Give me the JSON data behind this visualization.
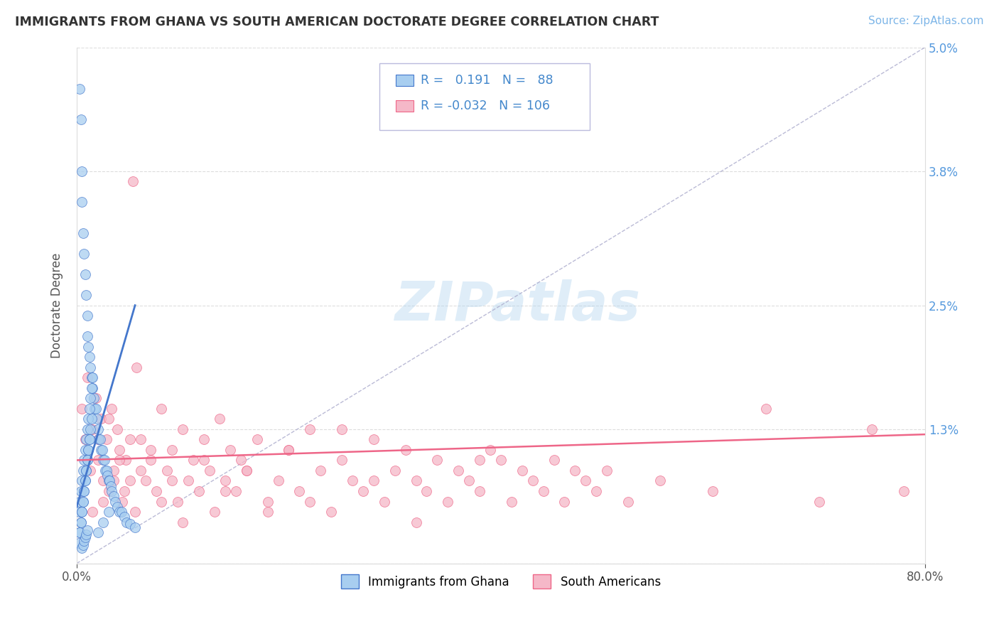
{
  "title": "IMMIGRANTS FROM GHANA VS SOUTH AMERICAN DOCTORATE DEGREE CORRELATION CHART",
  "source": "Source: ZipAtlas.com",
  "ylabel": "Doctorate Degree",
  "watermark": "ZIPatlas",
  "xlim": [
    0,
    80
  ],
  "ylim": [
    0,
    5.0
  ],
  "ytick_positions": [
    0,
    1.3,
    2.5,
    3.8,
    5.0
  ],
  "ytick_labels": [
    "",
    "1.3%",
    "2.5%",
    "3.8%",
    "5.0%"
  ],
  "ghana_R": 0.191,
  "ghana_N": 88,
  "south_R": -0.032,
  "south_N": 106,
  "ghana_color": "#A8CEF0",
  "south_color": "#F5B8C8",
  "trend_ghana_color": "#4477CC",
  "trend_south_color": "#EE6688",
  "background_color": "#FFFFFF",
  "grid_color": "#DDDDDD",
  "diag_color": "#AAAACC",
  "ghana_scatter_x": [
    0.3,
    0.4,
    0.5,
    0.5,
    0.6,
    0.7,
    0.8,
    0.9,
    1.0,
    1.0,
    1.1,
    1.2,
    1.3,
    1.4,
    1.5,
    1.6,
    1.7,
    1.8,
    1.9,
    2.0,
    2.1,
    2.2,
    2.3,
    2.4,
    2.5,
    2.6,
    2.7,
    2.8,
    2.9,
    3.0,
    3.1,
    3.2,
    3.3,
    3.5,
    3.6,
    3.8,
    4.0,
    4.2,
    4.5,
    4.7,
    5.0,
    5.5,
    0.2,
    0.3,
    0.4,
    0.5,
    0.6,
    0.7,
    0.8,
    0.9,
    1.0,
    1.1,
    1.2,
    1.3,
    1.4,
    1.5,
    0.3,
    0.4,
    0.5,
    0.6,
    0.7,
    0.8,
    0.9,
    1.0,
    1.1,
    1.2,
    1.3,
    1.4,
    0.2,
    0.3,
    0.4,
    0.5,
    0.6,
    0.7,
    0.8,
    0.9,
    1.0,
    1.1,
    1.2,
    2.0,
    2.5,
    3.0,
    0.5,
    0.6,
    0.7,
    0.8,
    0.9,
    1.0
  ],
  "ghana_scatter_y": [
    4.6,
    4.3,
    3.8,
    3.5,
    3.2,
    3.0,
    2.8,
    2.6,
    2.4,
    2.2,
    2.1,
    2.0,
    1.9,
    1.8,
    1.7,
    1.6,
    1.5,
    1.5,
    1.4,
    1.3,
    1.2,
    1.2,
    1.1,
    1.1,
    1.0,
    1.0,
    0.9,
    0.9,
    0.85,
    0.8,
    0.8,
    0.75,
    0.7,
    0.65,
    0.6,
    0.55,
    0.5,
    0.5,
    0.45,
    0.4,
    0.38,
    0.35,
    0.5,
    0.6,
    0.7,
    0.8,
    0.9,
    1.0,
    1.1,
    1.2,
    1.3,
    1.4,
    1.5,
    1.6,
    1.7,
    1.8,
    0.3,
    0.4,
    0.5,
    0.6,
    0.7,
    0.8,
    0.9,
    1.0,
    1.1,
    1.2,
    1.3,
    1.4,
    0.2,
    0.3,
    0.4,
    0.5,
    0.6,
    0.7,
    0.8,
    0.9,
    1.0,
    1.1,
    1.2,
    0.3,
    0.4,
    0.5,
    0.15,
    0.18,
    0.22,
    0.25,
    0.28,
    0.32
  ],
  "south_scatter_x": [
    0.5,
    0.8,
    1.0,
    1.3,
    1.5,
    1.8,
    2.0,
    2.3,
    2.5,
    2.8,
    3.0,
    3.3,
    3.5,
    3.8,
    4.0,
    4.3,
    4.6,
    5.0,
    5.3,
    5.6,
    6.0,
    6.5,
    7.0,
    7.5,
    8.0,
    8.5,
    9.0,
    9.5,
    10.0,
    10.5,
    11.0,
    11.5,
    12.0,
    12.5,
    13.0,
    13.5,
    14.0,
    14.5,
    15.0,
    15.5,
    16.0,
    17.0,
    18.0,
    19.0,
    20.0,
    21.0,
    22.0,
    23.0,
    24.0,
    25.0,
    26.0,
    27.0,
    28.0,
    29.0,
    30.0,
    31.0,
    32.0,
    33.0,
    34.0,
    35.0,
    36.0,
    37.0,
    38.0,
    39.0,
    40.0,
    41.0,
    42.0,
    43.0,
    44.0,
    45.0,
    46.0,
    47.0,
    48.0,
    49.0,
    50.0,
    52.0,
    55.0,
    60.0,
    65.0,
    70.0,
    75.0,
    78.0,
    1.5,
    2.0,
    2.5,
    3.0,
    3.5,
    4.0,
    4.5,
    5.0,
    5.5,
    6.0,
    7.0,
    8.0,
    9.0,
    10.0,
    12.0,
    14.0,
    16.0,
    18.0,
    20.0,
    22.0,
    25.0,
    28.0,
    32.0,
    38.0
  ],
  "south_scatter_y": [
    1.5,
    1.2,
    1.8,
    0.9,
    1.3,
    1.6,
    1.0,
    1.4,
    0.8,
    1.2,
    0.7,
    1.5,
    0.9,
    1.3,
    1.1,
    0.6,
    1.0,
    0.8,
    3.7,
    1.9,
    1.2,
    0.8,
    1.0,
    0.7,
    1.5,
    0.9,
    1.1,
    0.6,
    1.3,
    0.8,
    1.0,
    0.7,
    1.2,
    0.9,
    0.5,
    1.4,
    0.8,
    1.1,
    0.7,
    1.0,
    0.9,
    1.2,
    0.6,
    0.8,
    1.1,
    0.7,
    1.3,
    0.9,
    0.5,
    1.0,
    0.8,
    0.7,
    1.2,
    0.6,
    0.9,
    1.1,
    0.8,
    0.7,
    1.0,
    0.6,
    0.9,
    0.8,
    0.7,
    1.1,
    1.0,
    0.6,
    0.9,
    0.8,
    0.7,
    1.0,
    0.6,
    0.9,
    0.8,
    0.7,
    0.9,
    0.6,
    0.8,
    0.7,
    1.5,
    0.6,
    1.3,
    0.7,
    0.5,
    1.2,
    0.6,
    1.4,
    0.8,
    1.0,
    0.7,
    1.2,
    0.5,
    0.9,
    1.1,
    0.6,
    0.8,
    0.4,
    1.0,
    0.7,
    0.9,
    0.5,
    1.1,
    0.6,
    1.3,
    0.8,
    0.4,
    1.0
  ]
}
